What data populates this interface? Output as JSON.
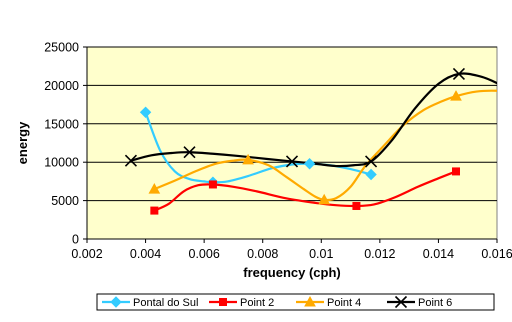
{
  "chart_data": {
    "type": "line",
    "xlabel": "frequency (cph)",
    "ylabel": "energy",
    "xlim": [
      0.002,
      0.016
    ],
    "ylim": [
      0,
      25000
    ],
    "x_ticks": [
      "0.002",
      "0.004",
      "0.006",
      "0.008",
      "0.01",
      "0.012",
      "0.014",
      "0.016"
    ],
    "y_ticks": [
      "0",
      "5000",
      "10000",
      "15000",
      "20000",
      "25000"
    ],
    "x_tick_values": [
      0.002,
      0.004,
      0.006,
      0.008,
      0.01,
      0.012,
      0.014,
      0.016
    ],
    "y_tick_values": [
      0,
      5000,
      10000,
      15000,
      20000,
      25000
    ],
    "grid": "horizontal",
    "legend_position": "bottom",
    "plot_background": "#ffffcc",
    "series": [
      {
        "name": "Pontal do Sul",
        "color": "#33ccff",
        "marker": "diamond",
        "points": [
          [
            0.004,
            16500
          ],
          [
            0.0063,
            7400
          ],
          [
            0.0096,
            9800
          ],
          [
            0.0117,
            8400
          ]
        ],
        "curve": [
          [
            0.004,
            16500
          ],
          [
            0.0045,
            11500
          ],
          [
            0.005,
            8800
          ],
          [
            0.0055,
            7800
          ],
          [
            0.006,
            7500
          ],
          [
            0.0063,
            7400
          ],
          [
            0.0068,
            7500
          ],
          [
            0.0075,
            8200
          ],
          [
            0.0083,
            9200
          ],
          [
            0.009,
            9700
          ],
          [
            0.0096,
            9800
          ],
          [
            0.0103,
            9600
          ],
          [
            0.011,
            9100
          ],
          [
            0.0117,
            8400
          ]
        ]
      },
      {
        "name": "Point 2",
        "color": "#ff0000",
        "marker": "square",
        "points": [
          [
            0.0043,
            3700
          ],
          [
            0.0063,
            7100
          ],
          [
            0.0112,
            4300
          ],
          [
            0.0146,
            8800
          ]
        ],
        "curve": [
          [
            0.0043,
            3700
          ],
          [
            0.0048,
            4600
          ],
          [
            0.0053,
            6200
          ],
          [
            0.0058,
            7000
          ],
          [
            0.0063,
            7100
          ],
          [
            0.007,
            6800
          ],
          [
            0.0078,
            6200
          ],
          [
            0.0088,
            5300
          ],
          [
            0.0098,
            4700
          ],
          [
            0.0105,
            4400
          ],
          [
            0.0112,
            4300
          ],
          [
            0.0118,
            4500
          ],
          [
            0.0125,
            5400
          ],
          [
            0.0133,
            6800
          ],
          [
            0.014,
            7900
          ],
          [
            0.0146,
            8800
          ]
        ]
      },
      {
        "name": "Point 4",
        "color": "#ffaa00",
        "marker": "triangle",
        "points": [
          [
            0.0043,
            6500
          ],
          [
            0.0075,
            10300
          ],
          [
            0.0101,
            5100
          ],
          [
            0.0146,
            18600
          ]
        ],
        "curve": [
          [
            0.0043,
            6500
          ],
          [
            0.005,
            7600
          ],
          [
            0.0057,
            8800
          ],
          [
            0.0064,
            9800
          ],
          [
            0.007,
            10200
          ],
          [
            0.0075,
            10300
          ],
          [
            0.0082,
            9600
          ],
          [
            0.0088,
            8100
          ],
          [
            0.0094,
            6500
          ],
          [
            0.0098,
            5500
          ],
          [
            0.0101,
            5100
          ],
          [
            0.0105,
            5300
          ],
          [
            0.011,
            6800
          ],
          [
            0.0115,
            9500
          ],
          [
            0.0121,
            12000
          ],
          [
            0.0128,
            14800
          ],
          [
            0.0135,
            16800
          ],
          [
            0.0141,
            17900
          ],
          [
            0.0146,
            18600
          ],
          [
            0.0153,
            19200
          ],
          [
            0.016,
            19300
          ],
          [
            0.0163,
            19100
          ]
        ]
      },
      {
        "name": "Point 6",
        "color": "#000000",
        "marker": "x",
        "points": [
          [
            0.0035,
            10200
          ],
          [
            0.0055,
            11300
          ],
          [
            0.009,
            10100
          ],
          [
            0.0117,
            10100
          ],
          [
            0.0147,
            21500
          ]
        ],
        "curve": [
          [
            0.0035,
            10200
          ],
          [
            0.0042,
            10900
          ],
          [
            0.0049,
            11200
          ],
          [
            0.0055,
            11300
          ],
          [
            0.0063,
            11100
          ],
          [
            0.0072,
            10800
          ],
          [
            0.0082,
            10400
          ],
          [
            0.009,
            10100
          ],
          [
            0.0098,
            9800
          ],
          [
            0.0105,
            9500
          ],
          [
            0.0111,
            9600
          ],
          [
            0.0117,
            10100
          ],
          [
            0.0124,
            12800
          ],
          [
            0.0132,
            17000
          ],
          [
            0.014,
            20200
          ],
          [
            0.0147,
            21500
          ],
          [
            0.0154,
            21200
          ],
          [
            0.016,
            20300
          ],
          [
            0.0163,
            19500
          ]
        ]
      }
    ]
  }
}
